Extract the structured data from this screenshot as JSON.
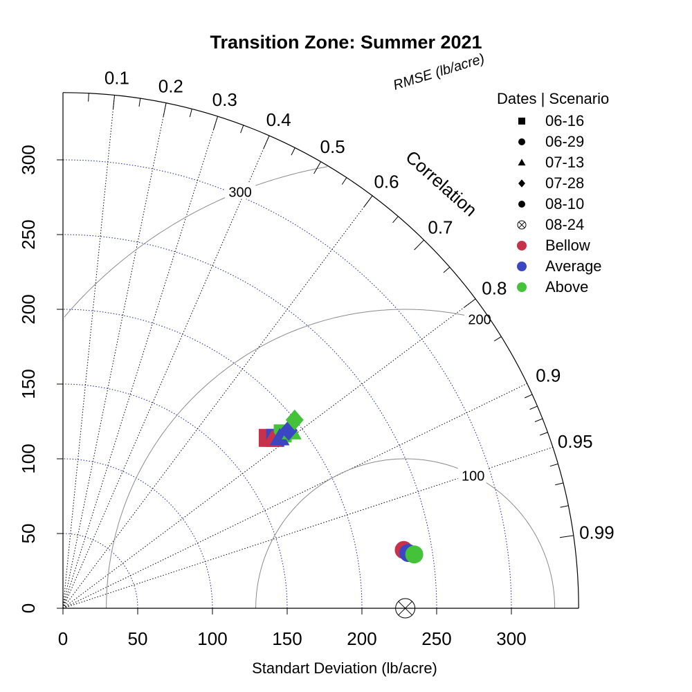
{
  "chart_data": {
    "type": "scatter",
    "subtype": "taylor-diagram",
    "title": "Transition Zone: Summer 2021",
    "xlabel": "Standart Deviation (lb/acre)",
    "ylabel": "",
    "xlim": [
      0,
      345
    ],
    "ylim": [
      0,
      345
    ],
    "x_ticks": [
      0,
      50,
      100,
      150,
      200,
      250,
      300
    ],
    "y_ticks": [
      0,
      50,
      100,
      150,
      200,
      250,
      300
    ],
    "sd_arcs": [
      50,
      100,
      150,
      200,
      250,
      300
    ],
    "correlation_label": "Correlation",
    "correlation_ticks": [
      0.1,
      0.2,
      0.3,
      0.4,
      0.5,
      0.6,
      0.7,
      0.8,
      0.9,
      0.95,
      0.99
    ],
    "correlation_tick_labels": [
      "0.1",
      "0.2",
      "0.3",
      "0.4",
      "0.5",
      "0.6",
      "0.7",
      "0.8",
      "0.9",
      "0.95",
      "0.99"
    ],
    "correlation_lines": [
      0.1,
      0.2,
      0.3,
      0.4,
      0.6,
      0.8,
      0.9,
      0.95
    ],
    "rmse_label": "RMSE (lb/acre)",
    "rmse_arcs": [
      100,
      200,
      300
    ],
    "rmse_arc_labels": [
      "100",
      "200",
      "300"
    ],
    "reference": {
      "sd": 229,
      "marker": "circle-x"
    },
    "legend": {
      "title": "Dates | Scenario",
      "placement": "top-right",
      "shapes": [
        {
          "label": "06-16",
          "shape": "square"
        },
        {
          "label": "06-29",
          "shape": "circle"
        },
        {
          "label": "07-13",
          "shape": "triangle"
        },
        {
          "label": "07-28",
          "shape": "diamond"
        },
        {
          "label": "08-10",
          "shape": "circle"
        },
        {
          "label": "08-24",
          "shape": "circle-x"
        }
      ],
      "colors": [
        {
          "label": "Bellow",
          "color": "#c8314a"
        },
        {
          "label": "Average",
          "color": "#3a46c2"
        },
        {
          "label": "Above",
          "color": "#44c23a"
        }
      ]
    },
    "points": [
      {
        "date": "06-16",
        "scenario": "Bellow",
        "x": 137,
        "y": 114,
        "shape": "square"
      },
      {
        "date": "06-16",
        "scenario": "Average",
        "x": 142,
        "y": 114,
        "shape": "square"
      },
      {
        "date": "06-16",
        "scenario": "Above",
        "x": 147,
        "y": 117,
        "shape": "square"
      },
      {
        "date": "07-13",
        "scenario": "Bellow",
        "x": 140,
        "y": 113,
        "shape": "triangle"
      },
      {
        "date": "07-13",
        "scenario": "Average",
        "x": 145,
        "y": 114,
        "shape": "triangle"
      },
      {
        "date": "07-13",
        "scenario": "Above",
        "x": 153,
        "y": 118,
        "shape": "triangle"
      },
      {
        "date": "07-28",
        "scenario": "Average",
        "x": 151,
        "y": 119,
        "shape": "diamond"
      },
      {
        "date": "07-28",
        "scenario": "Above",
        "x": 155,
        "y": 126,
        "shape": "diamond"
      },
      {
        "date": "06-29",
        "scenario": "Bellow",
        "x": 228,
        "y": 39,
        "shape": "circle"
      },
      {
        "date": "06-29",
        "scenario": "Average",
        "x": 231,
        "y": 37,
        "shape": "circle"
      },
      {
        "date": "06-29",
        "scenario": "Above",
        "x": 235,
        "y": 36,
        "shape": "circle"
      }
    ]
  }
}
